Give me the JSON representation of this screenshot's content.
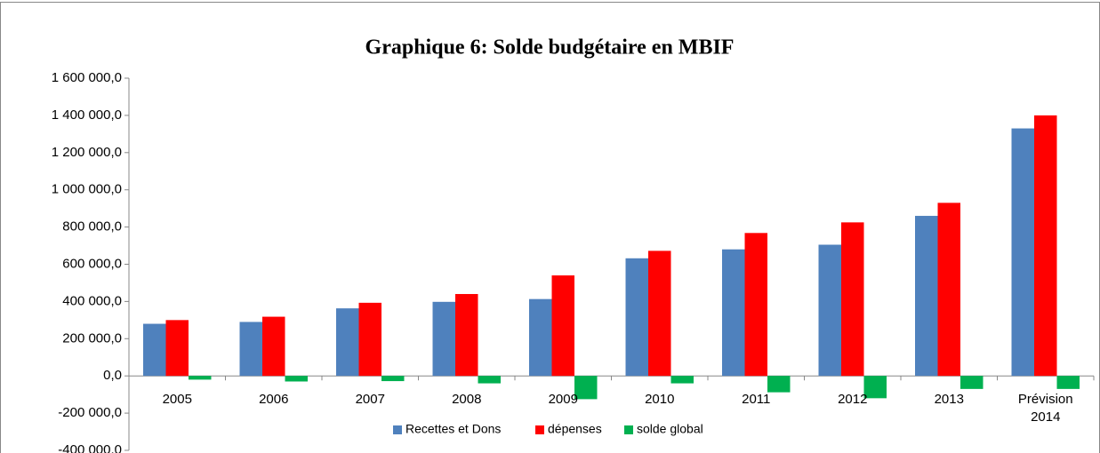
{
  "chart_data": {
    "type": "bar",
    "title": "Graphique 6: Solde budgétaire en MBIF",
    "categories": [
      "2005",
      "2006",
      "2007",
      "2008",
      "2009",
      "2010",
      "2011",
      "2012",
      "2013",
      "Prévision 2014"
    ],
    "series": [
      {
        "name": "Recettes et Dons",
        "color": "#4f81bd",
        "values": [
          280000,
          290000,
          363000,
          398000,
          413000,
          632000,
          680000,
          705000,
          860000,
          1330000
        ]
      },
      {
        "name": "dépenses",
        "color": "#ff0000",
        "values": [
          300000,
          318000,
          393000,
          440000,
          540000,
          672000,
          768000,
          825000,
          930000,
          1400000
        ]
      },
      {
        "name": "solde global",
        "color": "#00b050",
        "values": [
          -20000,
          -30000,
          -28000,
          -40000,
          -125000,
          -40000,
          -88000,
          -120000,
          -70000,
          -70000
        ]
      }
    ],
    "ylim": [
      -400000,
      1600000
    ],
    "yticks": [
      {
        "value": -400000,
        "label": "-400 000,0"
      },
      {
        "value": -200000,
        "label": "-200 000,0"
      },
      {
        "value": 0,
        "label": "0,0"
      },
      {
        "value": 200000,
        "label": "200 000,0"
      },
      {
        "value": 400000,
        "label": "400 000,0"
      },
      {
        "value": 600000,
        "label": "600 000,0"
      },
      {
        "value": 800000,
        "label": "800 000,0"
      },
      {
        "value": 1000000,
        "label": "1 000 000,0"
      },
      {
        "value": 1200000,
        "label": "1 200 000,0"
      },
      {
        "value": 1400000,
        "label": "1 400 000,0"
      },
      {
        "value": 1600000,
        "label": "1 600 000,0"
      }
    ],
    "grid": false,
    "legend": "bottom"
  }
}
